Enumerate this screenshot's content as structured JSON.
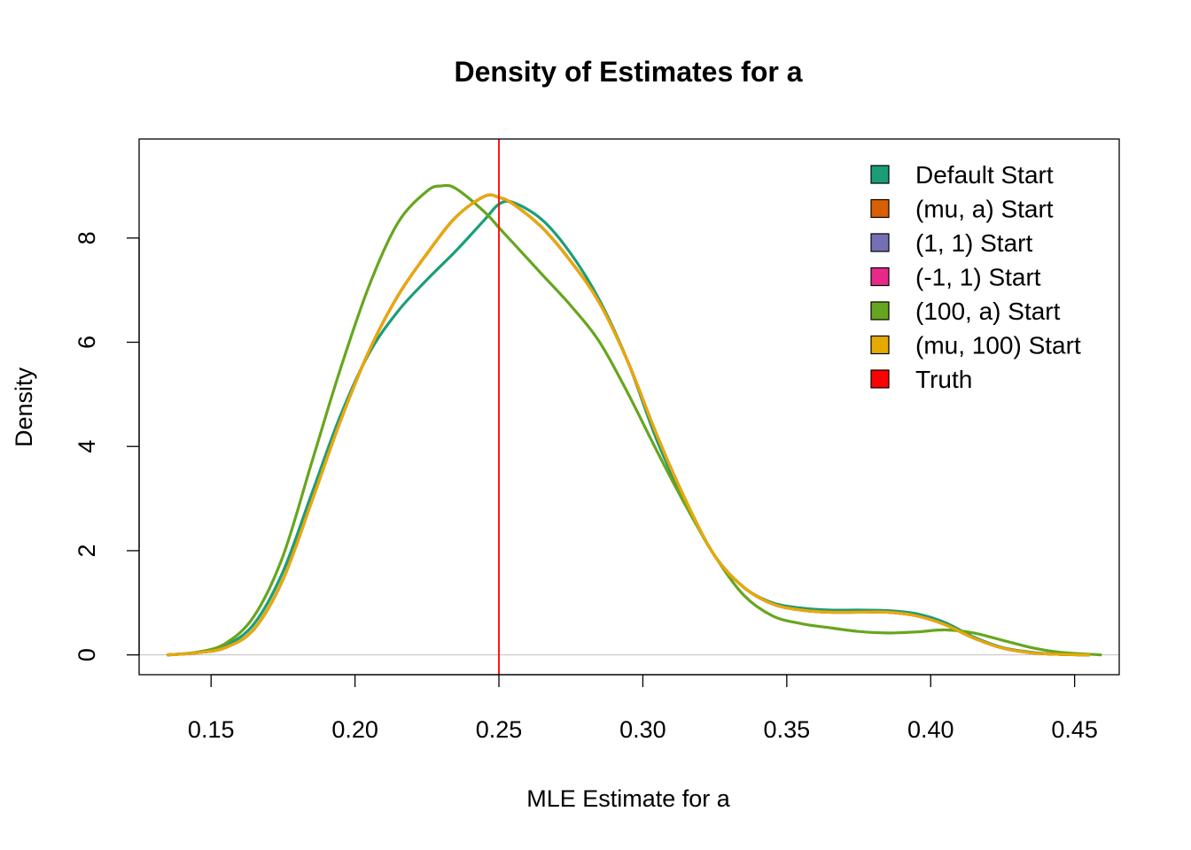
{
  "chart_data": {
    "type": "line",
    "title": "Density of Estimates for a",
    "xlabel": "MLE Estimate for a",
    "ylabel": "Density",
    "xlim": [
      0.125,
      0.4655
    ],
    "ylim": [
      -0.38,
      9.9
    ],
    "x_ticks": [
      0.15,
      0.2,
      0.25,
      0.3,
      0.35,
      0.4,
      0.45
    ],
    "x_tick_labels": [
      "0.15",
      "0.20",
      "0.25",
      "0.30",
      "0.35",
      "0.40",
      "0.45"
    ],
    "y_ticks": [
      0,
      2,
      4,
      6,
      8
    ],
    "y_tick_labels": [
      "0",
      "2",
      "4",
      "6",
      "8"
    ],
    "reference_line": {
      "name": "Truth",
      "x": 0.25,
      "color": "#FF0000"
    },
    "legend_position": "top-right",
    "legend": [
      {
        "label": "Default Start",
        "color": "#1B9E77"
      },
      {
        "label": "(mu, a) Start",
        "color": "#D95F02"
      },
      {
        "label": "(1, 1) Start",
        "color": "#7570B3"
      },
      {
        "label": "(-1, 1) Start",
        "color": "#E7298A"
      },
      {
        "label": "(100, a) Start",
        "color": "#66A61E"
      },
      {
        "label": "(mu, 100) Start",
        "color": "#E6AB02"
      },
      {
        "label": "Truth",
        "color": "#FF0000"
      }
    ],
    "series": [
      {
        "name": "Default Start",
        "color": "#1B9E77",
        "x": [
          0.135,
          0.145,
          0.155,
          0.165,
          0.175,
          0.185,
          0.195,
          0.205,
          0.215,
          0.225,
          0.235,
          0.245,
          0.25,
          0.255,
          0.265,
          0.275,
          0.285,
          0.295,
          0.305,
          0.315,
          0.325,
          0.335,
          0.345,
          0.355,
          0.365,
          0.375,
          0.385,
          0.395,
          0.405,
          0.415,
          0.425,
          0.435,
          0.445,
          0.455
        ],
        "y": [
          0.0,
          0.05,
          0.18,
          0.6,
          1.6,
          3.1,
          4.6,
          5.8,
          6.6,
          7.2,
          7.75,
          8.35,
          8.65,
          8.68,
          8.35,
          7.7,
          6.8,
          5.6,
          4.1,
          2.9,
          1.9,
          1.3,
          1.0,
          0.9,
          0.86,
          0.86,
          0.85,
          0.79,
          0.62,
          0.34,
          0.14,
          0.05,
          0.01,
          0.0
        ]
      },
      {
        "name": "(mu, a) Start",
        "color": "#D95F02",
        "x": [
          0.135,
          0.145,
          0.155,
          0.165,
          0.175,
          0.185,
          0.195,
          0.205,
          0.215,
          0.225,
          0.235,
          0.245,
          0.25,
          0.255,
          0.265,
          0.275,
          0.285,
          0.295,
          0.305,
          0.315,
          0.325,
          0.335,
          0.345,
          0.355,
          0.365,
          0.375,
          0.385,
          0.395,
          0.405,
          0.415,
          0.425,
          0.435,
          0.445,
          0.455
        ],
        "y": [
          0.0,
          0.04,
          0.14,
          0.5,
          1.45,
          2.95,
          4.5,
          5.85,
          6.9,
          7.7,
          8.4,
          8.8,
          8.78,
          8.65,
          8.2,
          7.55,
          6.75,
          5.6,
          4.2,
          2.95,
          1.9,
          1.3,
          0.98,
          0.86,
          0.82,
          0.82,
          0.82,
          0.75,
          0.58,
          0.32,
          0.13,
          0.04,
          0.01,
          0.0
        ]
      },
      {
        "name": "(1, 1) Start",
        "color": "#7570B3",
        "x": [
          0.135,
          0.145,
          0.155,
          0.165,
          0.175,
          0.185,
          0.195,
          0.205,
          0.215,
          0.225,
          0.235,
          0.245,
          0.25,
          0.255,
          0.265,
          0.275,
          0.285,
          0.295,
          0.305,
          0.315,
          0.325,
          0.335,
          0.345,
          0.355,
          0.365,
          0.375,
          0.385,
          0.395,
          0.405,
          0.415,
          0.425,
          0.435,
          0.445,
          0.455
        ],
        "y": [
          0.0,
          0.04,
          0.14,
          0.5,
          1.45,
          2.95,
          4.5,
          5.85,
          6.9,
          7.7,
          8.4,
          8.8,
          8.78,
          8.65,
          8.2,
          7.55,
          6.75,
          5.6,
          4.2,
          2.95,
          1.9,
          1.3,
          0.98,
          0.86,
          0.82,
          0.82,
          0.82,
          0.75,
          0.58,
          0.32,
          0.13,
          0.04,
          0.01,
          0.0
        ]
      },
      {
        "name": "(-1, 1) Start",
        "color": "#E7298A",
        "x": [
          0.135,
          0.145,
          0.155,
          0.165,
          0.175,
          0.185,
          0.195,
          0.205,
          0.215,
          0.225,
          0.235,
          0.245,
          0.25,
          0.255,
          0.265,
          0.275,
          0.285,
          0.295,
          0.305,
          0.315,
          0.325,
          0.335,
          0.345,
          0.355,
          0.365,
          0.375,
          0.385,
          0.395,
          0.405,
          0.415,
          0.425,
          0.435,
          0.445,
          0.455
        ],
        "y": [
          0.0,
          0.04,
          0.14,
          0.5,
          1.45,
          2.95,
          4.5,
          5.85,
          6.9,
          7.7,
          8.4,
          8.8,
          8.78,
          8.65,
          8.2,
          7.55,
          6.75,
          5.6,
          4.2,
          2.95,
          1.9,
          1.3,
          0.98,
          0.86,
          0.82,
          0.82,
          0.82,
          0.75,
          0.58,
          0.32,
          0.13,
          0.04,
          0.01,
          0.0
        ]
      },
      {
        "name": "(100, a) Start",
        "color": "#66A61E",
        "x": [
          0.135,
          0.145,
          0.155,
          0.165,
          0.175,
          0.185,
          0.195,
          0.205,
          0.215,
          0.225,
          0.23,
          0.235,
          0.245,
          0.25,
          0.255,
          0.265,
          0.275,
          0.285,
          0.295,
          0.305,
          0.315,
          0.325,
          0.335,
          0.345,
          0.355,
          0.365,
          0.375,
          0.385,
          0.395,
          0.405,
          0.415,
          0.425,
          0.435,
          0.445,
          0.459
        ],
        "y": [
          0.0,
          0.05,
          0.22,
          0.75,
          1.9,
          3.7,
          5.5,
          7.1,
          8.3,
          8.9,
          9.0,
          8.95,
          8.5,
          8.2,
          7.9,
          7.3,
          6.7,
          6.0,
          5.0,
          3.9,
          2.85,
          1.9,
          1.15,
          0.75,
          0.6,
          0.52,
          0.45,
          0.42,
          0.44,
          0.48,
          0.42,
          0.28,
          0.14,
          0.05,
          0.0
        ]
      },
      {
        "name": "(mu, 100) Start",
        "color": "#E6AB02",
        "x": [
          0.135,
          0.145,
          0.155,
          0.165,
          0.175,
          0.185,
          0.195,
          0.205,
          0.215,
          0.225,
          0.235,
          0.245,
          0.25,
          0.255,
          0.265,
          0.275,
          0.285,
          0.295,
          0.305,
          0.315,
          0.325,
          0.335,
          0.345,
          0.355,
          0.365,
          0.375,
          0.385,
          0.395,
          0.405,
          0.415,
          0.425,
          0.435,
          0.445,
          0.455
        ],
        "y": [
          0.0,
          0.04,
          0.14,
          0.5,
          1.45,
          2.95,
          4.5,
          5.85,
          6.9,
          7.7,
          8.4,
          8.8,
          8.78,
          8.65,
          8.2,
          7.55,
          6.75,
          5.6,
          4.2,
          2.95,
          1.9,
          1.3,
          0.98,
          0.86,
          0.82,
          0.82,
          0.82,
          0.75,
          0.58,
          0.32,
          0.13,
          0.04,
          0.01,
          0.0
        ]
      }
    ]
  }
}
